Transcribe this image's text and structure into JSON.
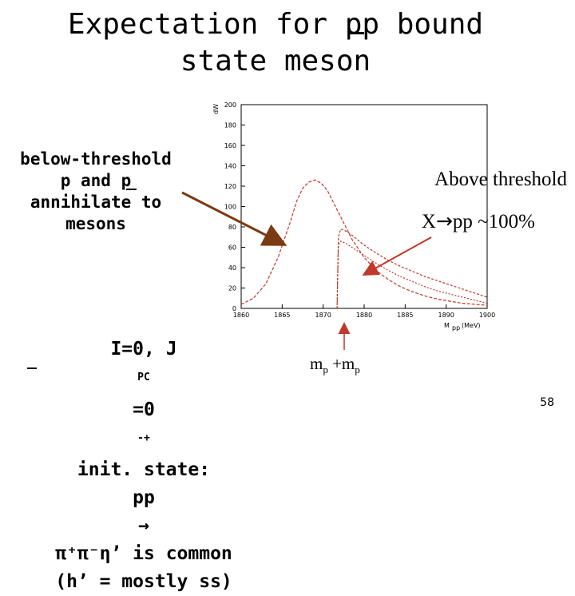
{
  "slide": {
    "title_line1": "Expectation for pp bound",
    "title_line2": "state meson",
    "below_threshold": [
      "below-threshold",
      "p and p",
      "annihilate to",
      "mesons"
    ],
    "above_line1": "Above threshold",
    "above_line2_arrow": "→",
    "above_line2_rest": "pp ~100%",
    "above_line2_x": "X",
    "bottom_line1_a": "I=0, J",
    "bottom_line1_sup": "PC",
    "bottom_line1_b": "=0",
    "bottom_line1_sup2": "-+",
    "bottom_line1_c": " init. state:",
    "bottom_line2_a": "pp ",
    "bottom_line2_arrow": "→",
    "bottom_line2_b": " π⁺π⁻η’ is common",
    "bottom_line3": "(h’ = mostly ss)",
    "mp_label": "m",
    "mp_sub": "p",
    "mp_plus": " +m",
    "mp_sub2": "p",
    "page_number": "58"
  },
  "colors": {
    "curve": "#c0392b",
    "arrow": "#7a3a12",
    "axis": "#000000"
  },
  "chart_data": {
    "type": "line",
    "xlabel": "M",
    "xlabel_sub": "pp",
    "xlabel_unit": "(MeV)",
    "ylabel": "dW",
    "x_ticks": [
      "1860",
      "1865",
      "1870",
      "1880",
      "1885",
      "1890",
      "1900"
    ],
    "y_ticks": [
      "0",
      "20",
      "40",
      "60",
      "80",
      "100",
      "120",
      "140",
      "160",
      "180",
      "200"
    ],
    "x_range": [
      1860,
      1900
    ],
    "ylim": [
      0,
      200
    ],
    "series": [
      {
        "x": [
          1860,
          1862,
          1864,
          1866,
          1868,
          1869,
          1870,
          1871,
          1872,
          1873,
          1874,
          1875,
          1876,
          1877,
          1878,
          1880,
          1882,
          1884,
          1886,
          1888,
          1890,
          1892,
          1894,
          1896,
          1898,
          1900
        ],
        "y": [
          4,
          10,
          24,
          50,
          85,
          105,
          118,
          124,
          126,
          123,
          116,
          104,
          92,
          80,
          68,
          50,
          37,
          28,
          21,
          16,
          12,
          9,
          7,
          5,
          4,
          3
        ]
      },
      {
        "x": [
          1875.6,
          1875.8,
          1876.2,
          1877,
          1878,
          1879,
          1880,
          1882,
          1884,
          1886,
          1888,
          1890,
          1892,
          1894,
          1896,
          1898,
          1900
        ],
        "y": [
          0,
          70,
          78,
          76,
          72,
          67,
          62,
          54,
          47,
          41,
          36,
          31,
          27,
          23,
          19,
          15,
          11
        ]
      },
      {
        "x": [
          1875.6,
          1875.8,
          1876.2,
          1877,
          1878,
          1879,
          1880,
          1882,
          1884,
          1886,
          1888,
          1890,
          1892,
          1894,
          1896,
          1898,
          1900
        ],
        "y": [
          0,
          62,
          66,
          64,
          60,
          56,
          52,
          44,
          37,
          31,
          26,
          21,
          17,
          14,
          11,
          8,
          5
        ]
      }
    ]
  }
}
